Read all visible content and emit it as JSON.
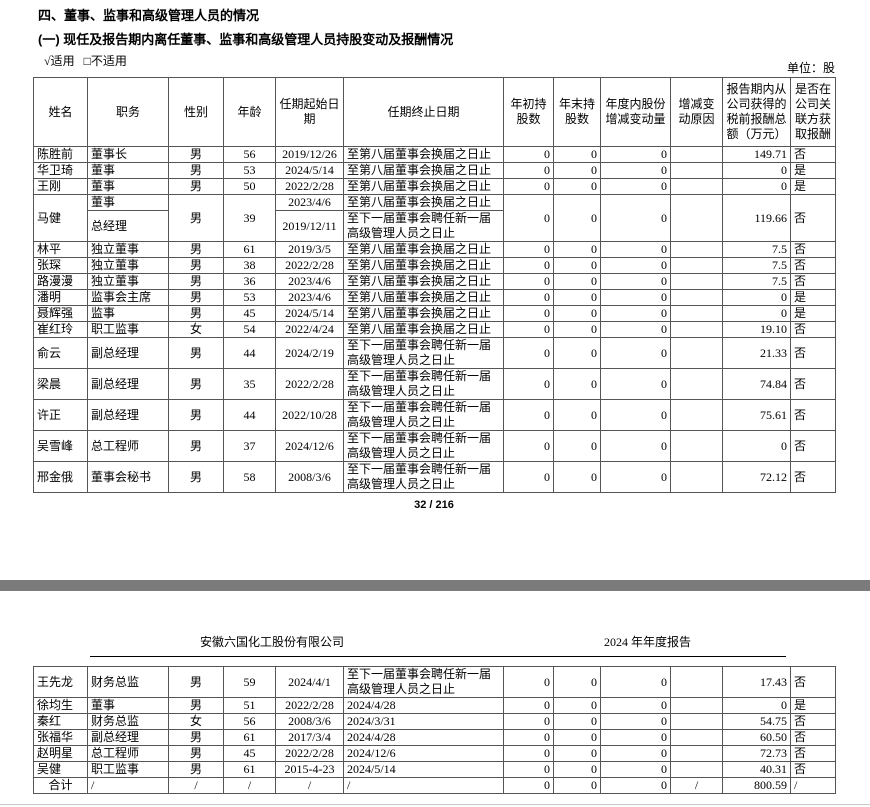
{
  "document": {
    "section_title": "四、董事、监事和高级管理人员的情况",
    "subsection_title": "(一) 现任及报告期内离任董事、监事和高级管理人员持股变动及报酬情况",
    "applicable_checked": "√适用",
    "not_applicable": "□不适用",
    "unit_label": "单位：股",
    "page_number": "32 / 216",
    "page2_header": {
      "company_name": "安徽六国化工股份有限公司",
      "report_title": "2024 年年度报告"
    }
  },
  "table": {
    "headers": [
      "姓名",
      "职务",
      "性别",
      "年龄",
      "任期起始日期",
      "任期终止日期",
      "年初持股数",
      "年末持股数",
      "年度内股份增减变动量",
      "增减变动原因",
      "报告期内从公司获得的税前报酬总额（万元）",
      "是否在公司关联方获取报酬"
    ],
    "rows_page1_before_merge": [
      {
        "name": "陈胜前",
        "position": "董事长",
        "gender": "男",
        "age": "56",
        "start": "2019/12/26",
        "end": "至第八届董事会换届之日止",
        "shares_begin": "0",
        "shares_end": "0",
        "change": "0",
        "reason": "",
        "pay": "149.71",
        "related": "否"
      },
      {
        "name": "华卫琦",
        "position": "董事",
        "gender": "男",
        "age": "53",
        "start": "2024/5/14",
        "end": "至第八届董事会换届之日止",
        "shares_begin": "0",
        "shares_end": "0",
        "change": "0",
        "reason": "",
        "pay": "0",
        "related": "是"
      },
      {
        "name": "王刚",
        "position": "董事",
        "gender": "男",
        "age": "50",
        "start": "2022/2/28",
        "end": "至第八届董事会换届之日止",
        "shares_begin": "0",
        "shares_end": "0",
        "change": "0",
        "reason": "",
        "pay": "0",
        "related": "是"
      }
    ],
    "merged_row": {
      "name": "马健",
      "gender": "男",
      "age": "39",
      "sub_rows": [
        {
          "position": "董事",
          "start": "2023/4/6",
          "end": "至第八届董事会换届之日止"
        },
        {
          "position": "总经理",
          "start": "2019/12/11",
          "end": "至下一届董事会聘任新一届高级管理人员之日止"
        }
      ],
      "shares_begin": "0",
      "shares_end": "0",
      "change": "0",
      "reason": "",
      "pay": "119.66",
      "related": "否"
    },
    "rows_page1_after_merge": [
      {
        "name": "林平",
        "position": "独立董事",
        "gender": "男",
        "age": "61",
        "start": "2019/3/5",
        "end": "至第八届董事会换届之日止",
        "shares_begin": "0",
        "shares_end": "0",
        "change": "0",
        "reason": "",
        "pay": "7.5",
        "related": "否"
      },
      {
        "name": "张琛",
        "position": "独立董事",
        "gender": "男",
        "age": "38",
        "start": "2022/2/28",
        "end": "至第八届董事会换届之日止",
        "shares_begin": "0",
        "shares_end": "0",
        "change": "0",
        "reason": "",
        "pay": "7.5",
        "related": "否"
      },
      {
        "name": "路漫漫",
        "position": "独立董事",
        "gender": "男",
        "age": "36",
        "start": "2023/4/6",
        "end": "至第八届董事会换届之日止",
        "shares_begin": "0",
        "shares_end": "0",
        "change": "0",
        "reason": "",
        "pay": "7.5",
        "related": "否"
      },
      {
        "name": "潘明",
        "position": "监事会主席",
        "gender": "男",
        "age": "53",
        "start": "2023/4/6",
        "end": "至第八届董事会换届之日止",
        "shares_begin": "0",
        "shares_end": "0",
        "change": "0",
        "reason": "",
        "pay": "0",
        "related": "是"
      },
      {
        "name": "聂辉强",
        "position": "监事",
        "gender": "男",
        "age": "45",
        "start": "2024/5/14",
        "end": "至第八届董事会换届之日止",
        "shares_begin": "0",
        "shares_end": "0",
        "change": "0",
        "reason": "",
        "pay": "0",
        "related": "是"
      },
      {
        "name": "崔红玲",
        "position": "职工监事",
        "gender": "女",
        "age": "54",
        "start": "2022/4/24",
        "end": "至第八届董事会换届之日止",
        "shares_begin": "0",
        "shares_end": "0",
        "change": "0",
        "reason": "",
        "pay": "19.10",
        "related": "否"
      },
      {
        "name": "俞云",
        "position": "副总经理",
        "gender": "男",
        "age": "44",
        "start": "2024/2/19",
        "end": "至下一届董事会聘任新一届高级管理人员之日止",
        "shares_begin": "0",
        "shares_end": "0",
        "change": "0",
        "reason": "",
        "pay": "21.33",
        "related": "否"
      },
      {
        "name": "梁晨",
        "position": "副总经理",
        "gender": "男",
        "age": "35",
        "start": "2022/2/28",
        "end": "至下一届董事会聘任新一届高级管理人员之日止",
        "shares_begin": "0",
        "shares_end": "0",
        "change": "0",
        "reason": "",
        "pay": "74.84",
        "related": "否"
      },
      {
        "name": "许正",
        "position": "副总经理",
        "gender": "男",
        "age": "44",
        "start": "2022/10/28",
        "end": "至下一届董事会聘任新一届高级管理人员之日止",
        "shares_begin": "0",
        "shares_end": "0",
        "change": "0",
        "reason": "",
        "pay": "75.61",
        "related": "否"
      },
      {
        "name": "吴雪峰",
        "position": "总工程师",
        "gender": "男",
        "age": "37",
        "start": "2024/12/6",
        "end": "至下一届董事会聘任新一届高级管理人员之日止",
        "shares_begin": "0",
        "shares_end": "0",
        "change": "0",
        "reason": "",
        "pay": "0",
        "related": "否"
      },
      {
        "name": "邢金俄",
        "position": "董事会秘书",
        "gender": "男",
        "age": "58",
        "start": "2008/3/6",
        "end": "至下一届董事会聘任新一届高级管理人员之日止",
        "shares_begin": "0",
        "shares_end": "0",
        "change": "0",
        "reason": "",
        "pay": "72.12",
        "related": "否"
      }
    ],
    "rows_page2": [
      {
        "name": "王先龙",
        "position": "财务总监",
        "gender": "男",
        "age": "59",
        "start": "2024/4/1",
        "end": "至下一届董事会聘任新一届高级管理人员之日止",
        "shares_begin": "0",
        "shares_end": "0",
        "change": "0",
        "reason": "",
        "pay": "17.43",
        "related": "否"
      },
      {
        "name": "徐均生",
        "position": "董事",
        "gender": "男",
        "age": "51",
        "start": "2022/2/28",
        "end": "2024/4/28",
        "shares_begin": "0",
        "shares_end": "0",
        "change": "0",
        "reason": "",
        "pay": "0",
        "related": "是"
      },
      {
        "name": "秦红",
        "position": "财务总监",
        "gender": "女",
        "age": "56",
        "start": "2008/3/6",
        "end": "2024/3/31",
        "shares_begin": "0",
        "shares_end": "0",
        "change": "0",
        "reason": "",
        "pay": "54.75",
        "related": "否"
      },
      {
        "name": "张福华",
        "position": "副总经理",
        "gender": "男",
        "age": "61",
        "start": "2017/3/4",
        "end": "2024/4/28",
        "shares_begin": "0",
        "shares_end": "0",
        "change": "0",
        "reason": "",
        "pay": "60.50",
        "related": "否"
      },
      {
        "name": "赵明星",
        "position": "总工程师",
        "gender": "男",
        "age": "45",
        "start": "2022/2/28",
        "end": "2024/12/6",
        "shares_begin": "0",
        "shares_end": "0",
        "change": "0",
        "reason": "",
        "pay": "72.73",
        "related": "否"
      },
      {
        "name": "吴健",
        "position": "职工监事",
        "gender": "男",
        "age": "61",
        "start": "2015-4-23",
        "end": "2024/5/14",
        "shares_begin": "0",
        "shares_end": "0",
        "change": "0",
        "reason": "",
        "pay": "40.31",
        "related": "否"
      }
    ],
    "total_row": {
      "name": "合计",
      "position": "/",
      "gender": "/",
      "age": "/",
      "start": "/",
      "end": "/",
      "shares_begin": "0",
      "shares_end": "0",
      "change": "0",
      "reason": "/",
      "pay": "800.59",
      "related": "/"
    }
  }
}
